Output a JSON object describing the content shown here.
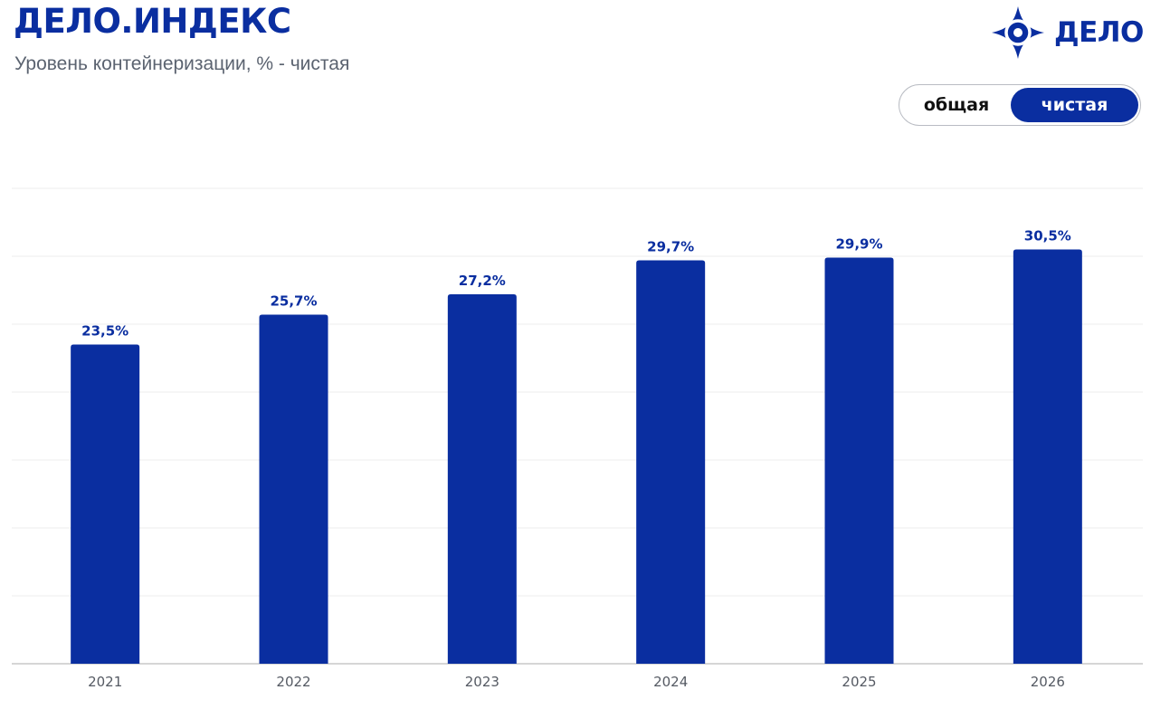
{
  "header": {
    "brand_title": "ДЕЛО.ИНДЕКС",
    "subtitle": "Уровень контейнеризации, % - чистая"
  },
  "logo": {
    "text": "ДЕЛО",
    "icon": "delo-star-icon"
  },
  "toggle": {
    "options": [
      "общая",
      "чистая"
    ],
    "selected": "чистая"
  },
  "colors": {
    "accent": "#0a2ea0",
    "grid": "#ececec",
    "axis": "#c8c8c8"
  },
  "chart_data": {
    "type": "bar",
    "categories": [
      "2021",
      "2022",
      "2023",
      "2024",
      "2025",
      "2026"
    ],
    "values": [
      23.5,
      25.7,
      27.2,
      29.7,
      29.9,
      30.5
    ],
    "value_labels": [
      "23,5%",
      "25,7%",
      "27,2%",
      "29,7%",
      "29,9%",
      "30,5%"
    ],
    "title": "Уровень контейнеризации, % - чистая",
    "xlabel": "",
    "ylabel": "",
    "ylim": [
      0,
      35
    ],
    "grid": true,
    "y_tick_labels_visible": false,
    "legend": "none"
  }
}
